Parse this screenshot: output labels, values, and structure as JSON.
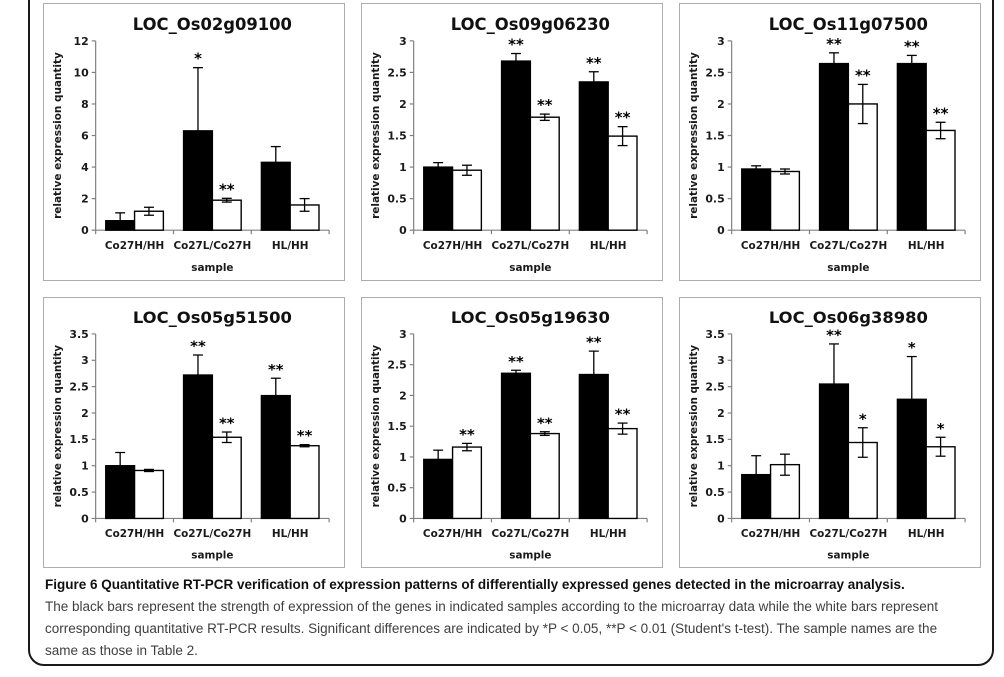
{
  "figure": {
    "caption_title": "Figure 6 Quantitative RT-PCR verification of expression patterns of differentially expressed genes detected in the microarray analysis.",
    "caption_body": "The black bars represent the strength of expression of the genes in indicated samples according to the microarray data while the white bars represent corresponding quantitative RT-PCR results. Significant differences are indicated by *P < 0.05, **P < 0.01 (Student's t-test). The sample names are the same as those in Table 2."
  },
  "colors": {
    "bar_black": "#000000",
    "bar_white": "#ffffff",
    "bar_border": "#000000",
    "axis": "#808080",
    "panel_border": "#adadad",
    "frame_border": "#1a1a1a"
  },
  "chart_data": [
    {
      "type": "bar",
      "title": "LOC_Os02g09100",
      "xlabel": "sample",
      "ylabel": "relative expression quantity",
      "categories": [
        "Co27H/HH",
        "Co27L/Co27H",
        "HL/HH"
      ],
      "ylim": [
        0,
        12
      ],
      "ytick_step": 2,
      "grid": false,
      "legend": "none",
      "series": [
        {
          "name": "microarray",
          "fill": "black",
          "values": [
            0.6,
            6.3,
            4.3
          ],
          "errors": [
            0.5,
            4.0,
            1.0
          ],
          "significance": [
            "",
            "*",
            ""
          ]
        },
        {
          "name": "quantitative RT-PCR",
          "fill": "white",
          "values": [
            1.2,
            1.9,
            1.6
          ],
          "errors": [
            0.25,
            0.12,
            0.4
          ],
          "significance": [
            "",
            "**",
            ""
          ]
        }
      ]
    },
    {
      "type": "bar",
      "title": "LOC_Os09g06230",
      "xlabel": "sample",
      "ylabel": "relative expression quantity",
      "categories": [
        "Co27H/HH",
        "Co27L/Co27H",
        "HL/HH"
      ],
      "ylim": [
        0,
        3
      ],
      "ytick_step": 0.5,
      "grid": false,
      "legend": "none",
      "series": [
        {
          "name": "microarray",
          "fill": "black",
          "values": [
            1.0,
            2.68,
            2.35
          ],
          "errors": [
            0.07,
            0.12,
            0.16
          ],
          "significance": [
            "",
            "**",
            "**"
          ]
        },
        {
          "name": "quantitative RT-PCR",
          "fill": "white",
          "values": [
            0.95,
            1.79,
            1.49
          ],
          "errors": [
            0.08,
            0.05,
            0.15
          ],
          "significance": [
            "",
            "**",
            "**"
          ]
        }
      ]
    },
    {
      "type": "bar",
      "title": "LOC_Os11g07500",
      "xlabel": "sample",
      "ylabel": "relative expression quantity",
      "categories": [
        "Co27H/HH",
        "Co27L/Co27H",
        "HL/HH"
      ],
      "ylim": [
        0,
        3
      ],
      "ytick_step": 0.5,
      "grid": false,
      "legend": "none",
      "series": [
        {
          "name": "microarray",
          "fill": "black",
          "values": [
            0.97,
            2.64,
            2.64
          ],
          "errors": [
            0.05,
            0.17,
            0.13
          ],
          "significance": [
            "",
            "**",
            "**"
          ]
        },
        {
          "name": "quantitative RT-PCR",
          "fill": "white",
          "values": [
            0.93,
            2.0,
            1.58
          ],
          "errors": [
            0.04,
            0.31,
            0.13
          ],
          "significance": [
            "",
            "**",
            "**"
          ]
        }
      ]
    },
    {
      "type": "bar",
      "title": "LOC_Os05g51500",
      "xlabel": "sample",
      "ylabel": "relative expression quantity",
      "categories": [
        "Co27H/HH",
        "Co27L/Co27H",
        "HL/HH"
      ],
      "ylim": [
        0,
        3.5
      ],
      "ytick_step": 0.5,
      "grid": false,
      "legend": "none",
      "series": [
        {
          "name": "microarray",
          "fill": "black",
          "values": [
            1.0,
            2.72,
            2.33
          ],
          "errors": [
            0.25,
            0.38,
            0.33
          ],
          "significance": [
            "",
            "**",
            "**"
          ]
        },
        {
          "name": "quantitative RT-PCR",
          "fill": "white",
          "values": [
            0.91,
            1.54,
            1.38
          ],
          "errors": [
            0.02,
            0.1,
            0.02
          ],
          "significance": [
            "",
            "**",
            "**"
          ]
        }
      ]
    },
    {
      "type": "bar",
      "title": "LOC_Os05g19630",
      "xlabel": "sample",
      "ylabel": "relative expression quantity",
      "categories": [
        "Co27H/HH",
        "Co27L/Co27H",
        "HL/HH"
      ],
      "ylim": [
        0,
        3
      ],
      "ytick_step": 0.5,
      "grid": false,
      "legend": "none",
      "series": [
        {
          "name": "microarray",
          "fill": "black",
          "values": [
            0.96,
            2.36,
            2.34
          ],
          "errors": [
            0.15,
            0.05,
            0.38
          ],
          "significance": [
            "",
            "**",
            "**"
          ]
        },
        {
          "name": "quantitative RT-PCR",
          "fill": "white",
          "values": [
            1.16,
            1.38,
            1.46
          ],
          "errors": [
            0.06,
            0.03,
            0.09
          ],
          "significance": [
            "**",
            "**",
            "**"
          ]
        }
      ]
    },
    {
      "type": "bar",
      "title": "LOC_Os06g38980",
      "xlabel": "sample",
      "ylabel": "relative expression quantity",
      "categories": [
        "Co27H/HH",
        "Co27L/Co27H",
        "HL/HH"
      ],
      "ylim": [
        0,
        3.5
      ],
      "ytick_step": 0.5,
      "grid": false,
      "legend": "none",
      "series": [
        {
          "name": "microarray",
          "fill": "black",
          "values": [
            0.83,
            2.55,
            2.26
          ],
          "errors": [
            0.36,
            0.76,
            0.81
          ],
          "significance": [
            "",
            "**",
            "*"
          ]
        },
        {
          "name": "quantitative RT-PCR",
          "fill": "white",
          "values": [
            1.02,
            1.44,
            1.36
          ],
          "errors": [
            0.2,
            0.28,
            0.18
          ],
          "significance": [
            "",
            "*",
            "*"
          ]
        }
      ]
    }
  ]
}
